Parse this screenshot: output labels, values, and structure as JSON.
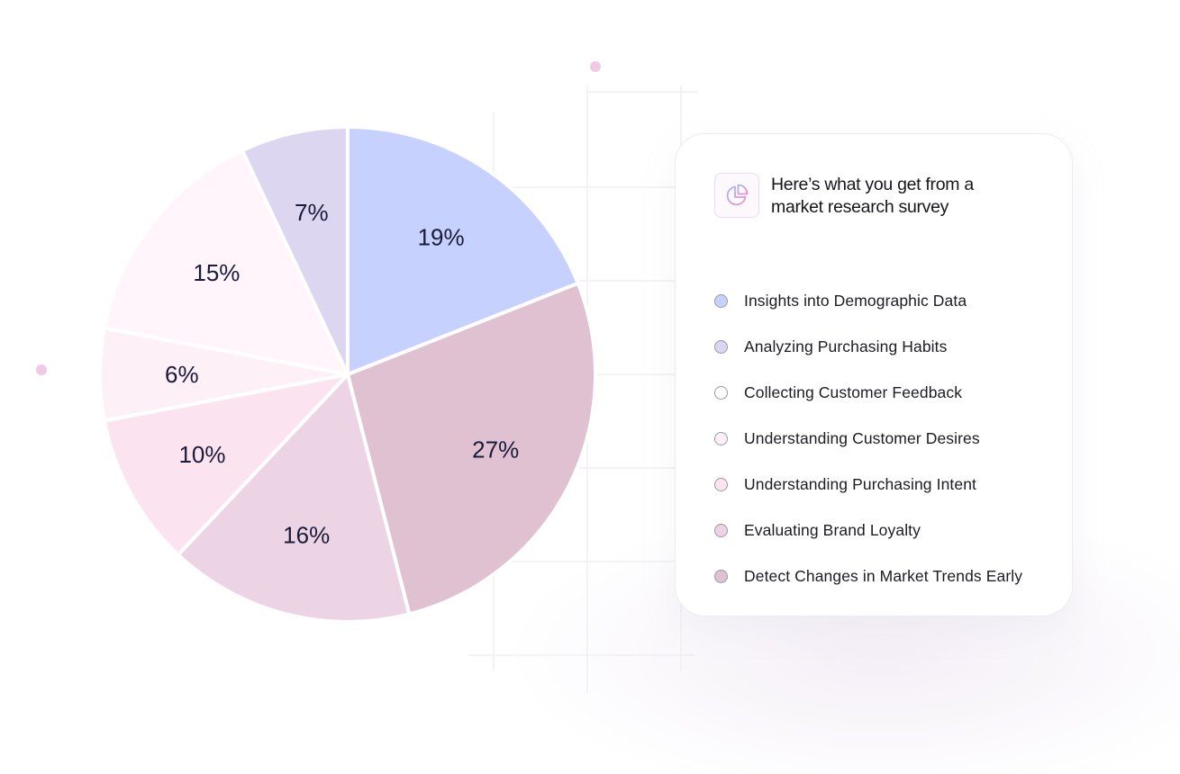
{
  "card": {
    "title_line1": "Here’s what you get from a",
    "title_line2": "market research survey",
    "icon": "pie-chart-icon"
  },
  "colors": {
    "border": "#9b9aa7",
    "text": "#15161c"
  },
  "chart_data": {
    "type": "pie",
    "start": "top, clockwise",
    "slices": [
      {
        "label": "Insights into Demographic Data",
        "value": 19,
        "display": "19%",
        "color": "#c7d1fd"
      },
      {
        "label": "Detect Changes in Market Trends Early",
        "value": 27,
        "display": "27%",
        "color": "#dfc1d2"
      },
      {
        "label": "Evaluating Brand Loyalty",
        "value": 16,
        "display": "16%",
        "color": "#ecd4e5"
      },
      {
        "label": "Understanding Purchasing Intent",
        "value": 10,
        "display": "10%",
        "color": "#fbe4f0"
      },
      {
        "label": "Understanding Customer Desires",
        "value": 6,
        "display": "6%",
        "color": "#fdf0f6"
      },
      {
        "label": "Collecting Customer Feedback",
        "value": 15,
        "display": "15%",
        "color": "#fff5fb"
      },
      {
        "label": "Analyzing Purchasing Habits",
        "value": 7,
        "display": "7%",
        "color": "#ddd6f1"
      }
    ],
    "legend": [
      {
        "label": "Insights into Demographic Data",
        "color": "#c7d1fd"
      },
      {
        "label": "Analyzing Purchasing Habits",
        "color": "#ddd6f1"
      },
      {
        "label": "Collecting Customer Feedback",
        "color": "#ffffff"
      },
      {
        "label": "Understanding Customer Desires",
        "color": "#fdf0f6"
      },
      {
        "label": "Understanding Purchasing Intent",
        "color": "#fbe4f0"
      },
      {
        "label": "Evaluating Brand Loyalty",
        "color": "#ecd4e5"
      },
      {
        "label": "Detect Changes in Market Trends Early",
        "color": "#dfc1d2"
      }
    ]
  }
}
